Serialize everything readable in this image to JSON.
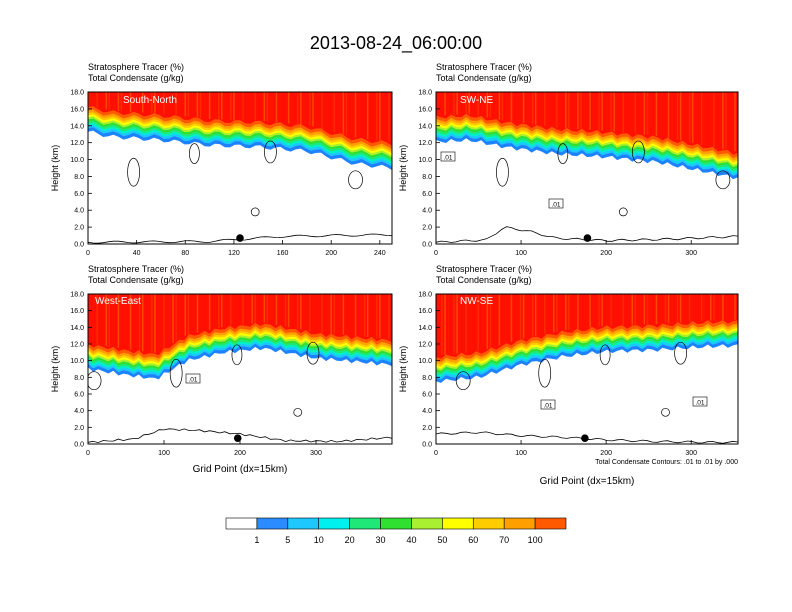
{
  "title": "2013-08-24_06:00:00",
  "chart_data": {
    "type": "heatmap",
    "variable_label": "Stratosphere Tracer   (%)",
    "contour_label": "Total Condensate   (g/kg)",
    "ylabel": "Height (km)",
    "xlabel": "Grid Point (dx=15km)",
    "contour_info": "Total Condensate Contours: .01 to .01 by .000",
    "ylim": [
      0,
      18
    ],
    "y_ticks": [
      "0.0",
      "2.0",
      "4.0",
      "6.0",
      "8.0",
      "10.0",
      "12.0",
      "14.0",
      "16.0",
      "18.0"
    ],
    "panels": [
      {
        "name": "South-North",
        "xlim": [
          0,
          250
        ],
        "x_ticks": [
          "0",
          "40",
          "80",
          "120",
          "160",
          "200",
          "240"
        ],
        "tropopause_km": [
          [
            0,
            15.8
          ],
          [
            20,
            15.2
          ],
          [
            60,
            14.8
          ],
          [
            100,
            14.2
          ],
          [
            140,
            14.0
          ],
          [
            180,
            13.5
          ],
          [
            220,
            12.0
          ],
          [
            250,
            11.5
          ]
        ],
        "terrain_km": [
          [
            0,
            0.2
          ],
          [
            100,
            0.3
          ],
          [
            130,
            0.6
          ],
          [
            160,
            0.9
          ],
          [
            200,
            1.0
          ],
          [
            250,
            1.1
          ]
        ],
        "marker_x": 125,
        "contour_labels": []
      },
      {
        "name": "SW-NE",
        "xlim": [
          0,
          355
        ],
        "x_ticks": [
          "0",
          "100",
          "200",
          "300"
        ],
        "tropopause_km": [
          [
            0,
            14.6
          ],
          [
            40,
            14.8
          ],
          [
            80,
            14.0
          ],
          [
            140,
            13.2
          ],
          [
            200,
            12.8
          ],
          [
            260,
            12.2
          ],
          [
            320,
            11.0
          ],
          [
            355,
            10.3
          ]
        ],
        "terrain_km": [
          [
            0,
            0.2
          ],
          [
            60,
            0.5
          ],
          [
            80,
            2.0
          ],
          [
            110,
            1.5
          ],
          [
            140,
            0.7
          ],
          [
            200,
            0.4
          ],
          [
            280,
            0.6
          ],
          [
            355,
            0.9
          ]
        ],
        "marker_x": 178,
        "contour_labels": [
          ".01",
          ".01"
        ]
      },
      {
        "name": "West-East",
        "xlim": [
          0,
          400
        ],
        "x_ticks": [
          "0",
          "100",
          "200",
          "300"
        ],
        "tropopause_km": [
          [
            0,
            11.5
          ],
          [
            50,
            10.8
          ],
          [
            90,
            10.3
          ],
          [
            130,
            12.5
          ],
          [
            180,
            13.5
          ],
          [
            230,
            14.0
          ],
          [
            300,
            12.8
          ],
          [
            400,
            12.0
          ]
        ],
        "terrain_km": [
          [
            0,
            0.2
          ],
          [
            60,
            0.6
          ],
          [
            100,
            1.8
          ],
          [
            150,
            1.6
          ],
          [
            200,
            1.2
          ],
          [
            260,
            0.4
          ],
          [
            330,
            0.3
          ],
          [
            400,
            0.8
          ]
        ],
        "marker_x": 197,
        "contour_labels": [
          ".01"
        ]
      },
      {
        "name": "NW-SE",
        "xlim": [
          0,
          355
        ],
        "x_ticks": [
          "0",
          "100",
          "200",
          "300"
        ],
        "tropopause_km": [
          [
            0,
            10.0
          ],
          [
            50,
            10.5
          ],
          [
            100,
            12.0
          ],
          [
            150,
            13.0
          ],
          [
            200,
            13.6
          ],
          [
            260,
            13.8
          ],
          [
            320,
            14.2
          ],
          [
            355,
            14.3
          ]
        ],
        "terrain_km": [
          [
            0,
            1.2
          ],
          [
            50,
            1.4
          ],
          [
            100,
            1.0
          ],
          [
            150,
            0.8
          ],
          [
            200,
            0.5
          ],
          [
            260,
            0.3
          ],
          [
            320,
            0.2
          ],
          [
            355,
            0.2
          ]
        ],
        "marker_x": 175,
        "contour_labels": [
          ".01",
          ".01"
        ]
      }
    ],
    "colorbar": {
      "levels": [
        "1",
        "5",
        "10",
        "20",
        "30",
        "40",
        "50",
        "60",
        "70",
        "100"
      ],
      "colors": [
        "#ffffff",
        "#2a8cff",
        "#1ec8ff",
        "#00f0f0",
        "#20e878",
        "#30e030",
        "#a8f030",
        "#ffff00",
        "#ffcc00",
        "#ffa000",
        "#ff5a00",
        "#ff1000"
      ]
    }
  }
}
